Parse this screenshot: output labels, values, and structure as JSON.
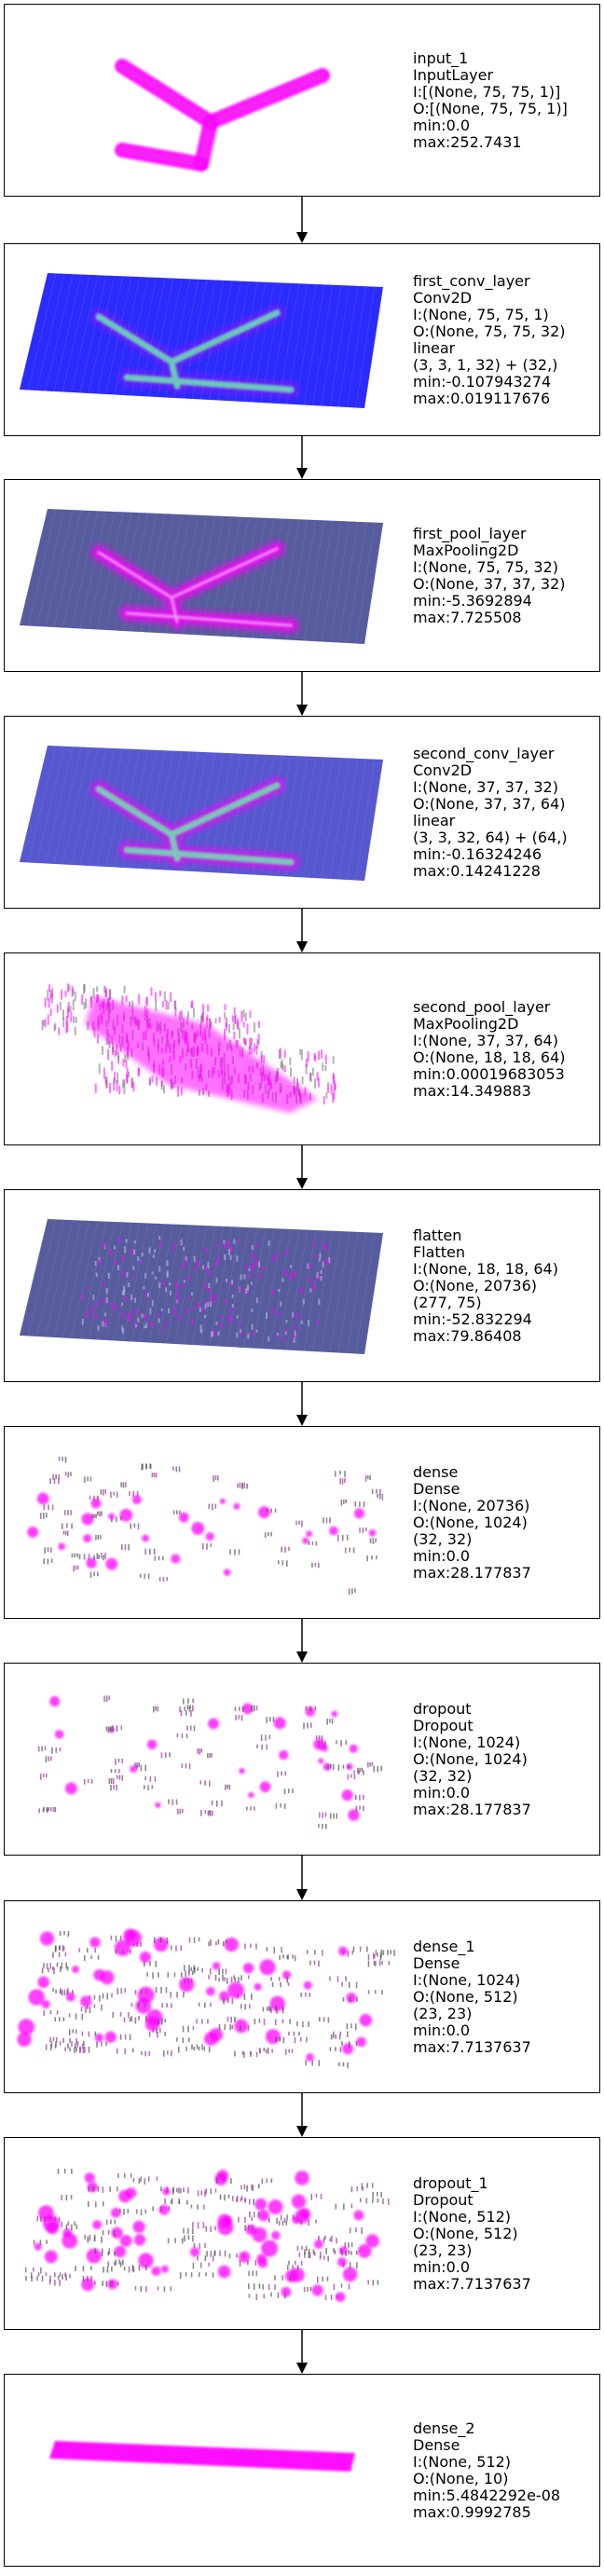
{
  "layers": [
    {
      "id": "input",
      "lines": [
        "input_1",
        "InputLayer",
        "I:[(None, 75, 75, 1)]",
        "O:[(None, 75, 75, 1)]",
        "min:0.0",
        "max:252.7431"
      ],
      "viz": "input"
    },
    {
      "id": "first_conv",
      "lines": [
        "first_conv_layer",
        "Conv2D",
        "I:(None, 75, 75, 1)",
        "O:(None, 75, 75, 32)",
        "linear",
        "(3, 3, 1, 32) + (32,)",
        "min:-0.107943274",
        "max:0.019117676"
      ],
      "viz": "grid-blue"
    },
    {
      "id": "first_pool",
      "lines": [
        "first_pool_layer",
        "MaxPooling2D",
        "I:(None, 75, 75, 32)",
        "O:(None, 37, 37, 32)",
        "min:-5.3692894",
        "max:7.725508"
      ],
      "viz": "grid-gray"
    },
    {
      "id": "second_conv",
      "lines": [
        "second_conv_layer",
        "Conv2D",
        "I:(None, 37, 37, 32)",
        "O:(None, 37, 37, 64)",
        "linear",
        "(3, 3, 32, 64) + (64,)",
        "min:-0.16324246",
        "max:0.14241228"
      ],
      "viz": "grid-blue2"
    },
    {
      "id": "second_pool",
      "lines": [
        "second_pool_layer",
        "MaxPooling2D",
        "I:(None, 37, 37, 64)",
        "O:(None, 18, 18, 64)",
        "min:0.00019683053",
        "max:14.349883"
      ],
      "viz": "pool2"
    },
    {
      "id": "flatten",
      "lines": [
        "flatten",
        "Flatten",
        "I:(None, 18, 18, 64)",
        "O:(None, 20736)",
        "(277, 75)",
        "min:-52.832294",
        "max:79.86408"
      ],
      "viz": "flatten"
    },
    {
      "id": "dense",
      "lines": [
        "dense",
        "Dense",
        "I:(None, 20736)",
        "O:(None, 1024)",
        "(32, 32)",
        "min:0.0",
        "max:28.177837"
      ],
      "viz": "sparse"
    },
    {
      "id": "dropout",
      "lines": [
        "dropout",
        "Dropout",
        "I:(None, 1024)",
        "O:(None, 1024)",
        "(32, 32)",
        "min:0.0",
        "max:28.177837"
      ],
      "viz": "sparse"
    },
    {
      "id": "dense_1",
      "lines": [
        "dense_1",
        "Dense",
        "I:(None, 1024)",
        "O:(None, 512)",
        "(23, 23)",
        "min:0.0",
        "max:7.7137637"
      ],
      "viz": "dense23"
    },
    {
      "id": "dropout_1",
      "lines": [
        "dropout_1",
        "Dropout",
        "I:(None, 512)",
        "O:(None, 512)",
        "(23, 23)",
        "min:0.0",
        "max:7.7137637"
      ],
      "viz": "dense23"
    },
    {
      "id": "dense_2",
      "lines": [
        "dense_2",
        "Dense",
        "I:(None, 512)",
        "O:(None, 10)",
        "min:5.4842292e-08",
        "max:0.9992785"
      ],
      "viz": "bar"
    }
  ],
  "colors": {
    "magenta": "#ff00ff",
    "blue": "#2020ff",
    "navy": "#3a3f8c",
    "green": "#6fe3b0"
  }
}
